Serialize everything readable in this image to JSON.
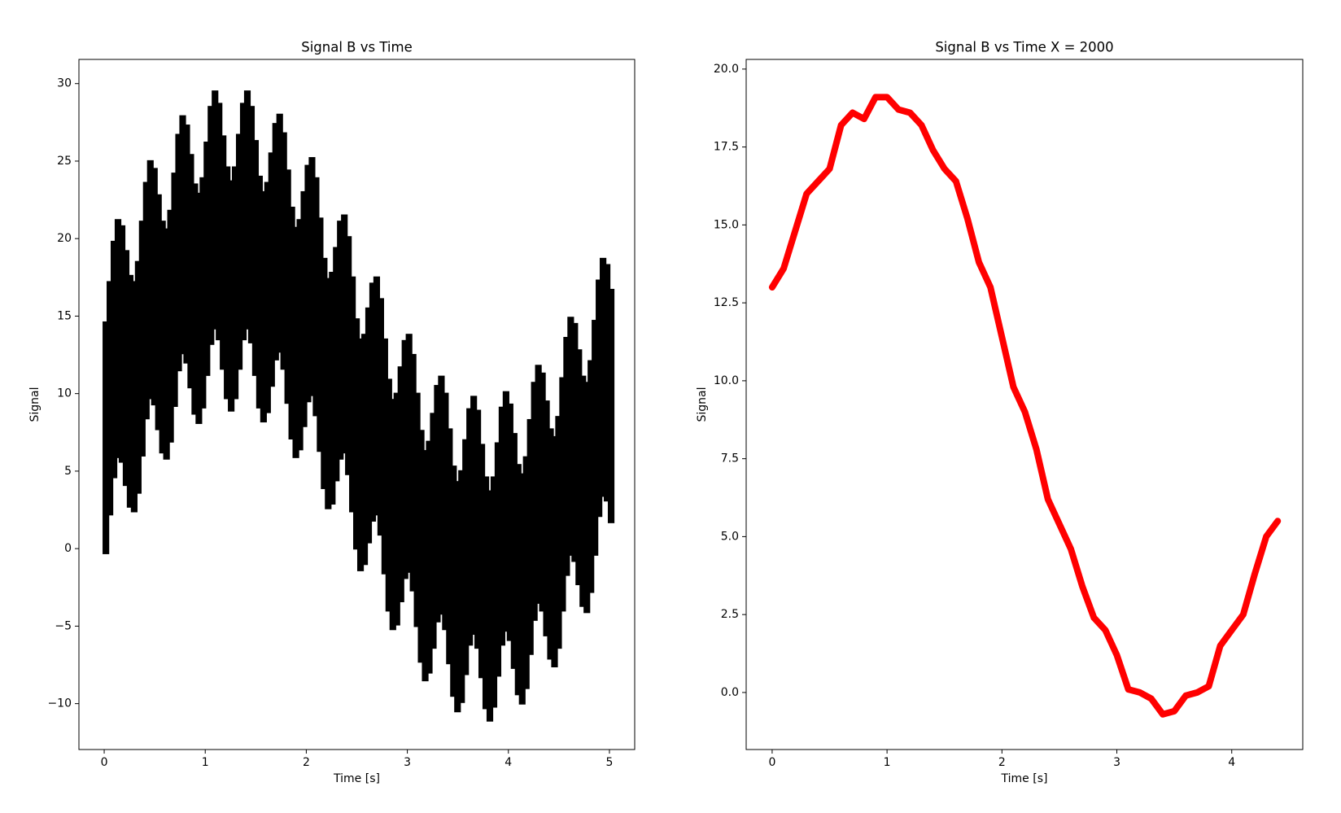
{
  "chart_data": [
    {
      "type": "band",
      "title": "Signal B vs Time",
      "xlabel": "Time [s]",
      "ylabel": "Signal",
      "color": "#000000",
      "x": [
        0,
        0.04,
        0.08,
        0.12,
        0.16,
        0.2,
        0.24,
        0.28,
        0.32,
        0.36,
        0.4,
        0.44,
        0.48,
        0.52,
        0.56,
        0.6,
        0.64,
        0.68,
        0.72,
        0.76,
        0.8,
        0.84,
        0.88,
        0.92,
        0.96,
        1,
        1.04,
        1.08,
        1.12,
        1.16,
        1.2,
        1.24,
        1.28,
        1.32,
        1.36,
        1.4,
        1.44,
        1.48,
        1.52,
        1.56,
        1.6,
        1.64,
        1.68,
        1.72,
        1.76,
        1.8,
        1.84,
        1.88,
        1.92,
        1.96,
        2,
        2.04,
        2.08,
        2.12,
        2.16,
        2.2,
        2.24,
        2.28,
        2.32,
        2.36,
        2.4,
        2.44,
        2.48,
        2.52,
        2.56,
        2.6,
        2.64,
        2.68,
        2.72,
        2.76,
        2.8,
        2.84,
        2.88,
        2.92,
        2.96,
        3,
        3.04,
        3.08,
        3.12,
        3.16,
        3.2,
        3.24,
        3.28,
        3.32,
        3.36,
        3.4,
        3.44,
        3.48,
        3.52,
        3.56,
        3.6,
        3.64,
        3.68,
        3.72,
        3.76,
        3.8,
        3.84,
        3.88,
        3.92,
        3.96,
        4,
        4.04,
        4.08,
        4.12,
        4.16,
        4.2,
        4.24,
        4.28,
        4.32,
        4.36,
        4.4,
        4.44,
        4.48,
        4.52,
        4.56,
        4.6,
        4.64,
        4.68,
        4.72,
        4.76,
        4.8,
        4.84,
        4.88,
        4.92,
        4.96,
        5
      ],
      "y_upper": [
        14.5,
        17.1,
        19.7,
        21.1,
        20.7,
        19.1,
        17.5,
        17.1,
        18.4,
        21.0,
        23.5,
        24.9,
        24.4,
        22.7,
        21.0,
        20.5,
        21.7,
        24.1,
        26.6,
        27.8,
        27.2,
        25.3,
        23.4,
        22.8,
        23.8,
        26.1,
        28.4,
        29.4,
        28.6,
        26.5,
        24.5,
        23.6,
        24.5,
        26.6,
        28.6,
        29.4,
        28.4,
        26.2,
        23.9,
        22.9,
        23.5,
        25.4,
        27.3,
        27.9,
        26.7,
        24.3,
        21.9,
        20.6,
        21.1,
        22.9,
        24.6,
        25.1,
        23.8,
        21.2,
        18.6,
        17.3,
        17.7,
        19.3,
        21.0,
        21.4,
        20.0,
        17.4,
        14.7,
        13.4,
        13.7,
        15.4,
        17.0,
        17.4,
        16.0,
        13.4,
        10.8,
        9.5,
        9.9,
        11.6,
        13.3,
        13.7,
        12.4,
        9.9,
        7.5,
        6.2,
        6.8,
        8.6,
        10.4,
        11.0,
        9.9,
        7.6,
        5.2,
        4.2,
        4.9,
        6.9,
        8.9,
        9.7,
        8.8,
        6.6,
        4.5,
        3.6,
        4.5,
        6.7,
        9.0,
        10.0,
        9.2,
        7.3,
        5.3,
        4.7,
        5.8,
        8.2,
        10.6,
        11.7,
        11.2,
        9.4,
        7.6,
        7.1,
        8.4,
        10.9,
        13.5,
        14.8,
        14.4,
        12.7,
        11.0,
        10.6,
        12.0,
        14.6,
        17.2,
        18.6,
        18.2,
        16.6
      ],
      "y_lower": [
        -0.2,
        2.3,
        4.7,
        6.0,
        5.7,
        4.2,
        2.8,
        2.5,
        3.7,
        6.1,
        8.5,
        9.8,
        9.4,
        7.8,
        6.3,
        5.9,
        7.0,
        9.3,
        11.6,
        12.7,
        12.1,
        10.5,
        8.8,
        8.2,
        9.2,
        11.3,
        13.3,
        14.3,
        13.6,
        11.7,
        9.8,
        9.0,
        9.8,
        11.7,
        13.6,
        14.3,
        13.4,
        11.3,
        9.2,
        8.3,
        8.9,
        10.6,
        12.3,
        12.8,
        11.7,
        9.5,
        7.2,
        6.0,
        6.5,
        8.0,
        9.6,
        10.0,
        8.7,
        6.4,
        4.0,
        2.7,
        3.0,
        4.5,
        5.9,
        6.3,
        4.9,
        2.5,
        0.1,
        -1.3,
        -0.9,
        0.5,
        1.9,
        2.3,
        1.0,
        -1.5,
        -3.9,
        -5.1,
        -4.8,
        -3.3,
        -1.8,
        -1.4,
        -2.6,
        -4.9,
        -7.2,
        -8.4,
        -7.9,
        -6.3,
        -4.6,
        -4.1,
        -5.1,
        -7.3,
        -9.4,
        -10.4,
        -9.8,
        -8.0,
        -6.1,
        -5.4,
        -6.3,
        -8.2,
        -10.2,
        -11.0,
        -10.1,
        -8.1,
        -6.1,
        -5.2,
        -5.8,
        -7.6,
        -9.3,
        -9.9,
        -8.9,
        -6.7,
        -4.5,
        -3.4,
        -3.9,
        -5.5,
        -7.0,
        -7.5,
        -6.3,
        -3.9,
        -1.6,
        -0.3,
        -0.7,
        -2.2,
        -3.6,
        -4.0,
        -2.7,
        -0.3,
        2.2,
        3.5,
        3.2,
        1.8
      ],
      "xlim": [
        -0.25,
        5.25
      ],
      "xticks": [
        0,
        1,
        2,
        3,
        4,
        5
      ],
      "ylim": [
        -12.96,
        31.56
      ],
      "yticks": [
        {
          "value": -10,
          "label": "−10"
        },
        {
          "value": -5,
          "label": "−5"
        },
        0,
        5,
        10,
        15,
        20,
        25,
        30
      ]
    },
    {
      "type": "line",
      "title": "Signal B vs Time X = 2000",
      "xlabel": "Time [s]",
      "ylabel": "Signal",
      "color": "#ff0000",
      "x": [
        0,
        0.1,
        0.2,
        0.3,
        0.4,
        0.5,
        0.6,
        0.7,
        0.8,
        0.9,
        1,
        1.1,
        1.2,
        1.3,
        1.4,
        1.5,
        1.6,
        1.7,
        1.8,
        1.9,
        2,
        2.1,
        2.2,
        2.3,
        2.4,
        2.5,
        2.6,
        2.7,
        2.8,
        2.9,
        3,
        3.1,
        3.2,
        3.3,
        3.4,
        3.5,
        3.6,
        3.7,
        3.8,
        3.9,
        4,
        4.1,
        4.2,
        4.3,
        4.4
      ],
      "values": [
        13.0,
        13.6,
        14.8,
        16.0,
        16.4,
        16.8,
        18.2,
        18.6,
        18.4,
        19.1,
        19.1,
        18.7,
        18.6,
        18.2,
        17.4,
        16.8,
        16.4,
        15.2,
        13.8,
        13.0,
        11.4,
        9.8,
        9.0,
        7.8,
        6.2,
        5.4,
        4.6,
        3.4,
        2.4,
        2.0,
        1.2,
        0.1,
        0.0,
        -0.2,
        -0.7,
        -0.6,
        -0.1,
        0.0,
        0.2,
        1.5,
        2.0,
        2.5,
        3.8,
        5.0,
        5.5
      ],
      "xlim": [
        -0.226,
        4.618
      ],
      "xticks": [
        0,
        1,
        2,
        3,
        4
      ],
      "ylim": [
        -1.83,
        20.31
      ],
      "yticks": [
        {
          "value": 0,
          "label": "0.0"
        },
        2.5,
        {
          "value": 5,
          "label": "5.0"
        },
        7.5,
        {
          "value": 10,
          "label": "10.0"
        },
        12.5,
        {
          "value": 15,
          "label": "15.0"
        },
        17.5,
        {
          "value": 20,
          "label": "20.0"
        }
      ]
    }
  ]
}
